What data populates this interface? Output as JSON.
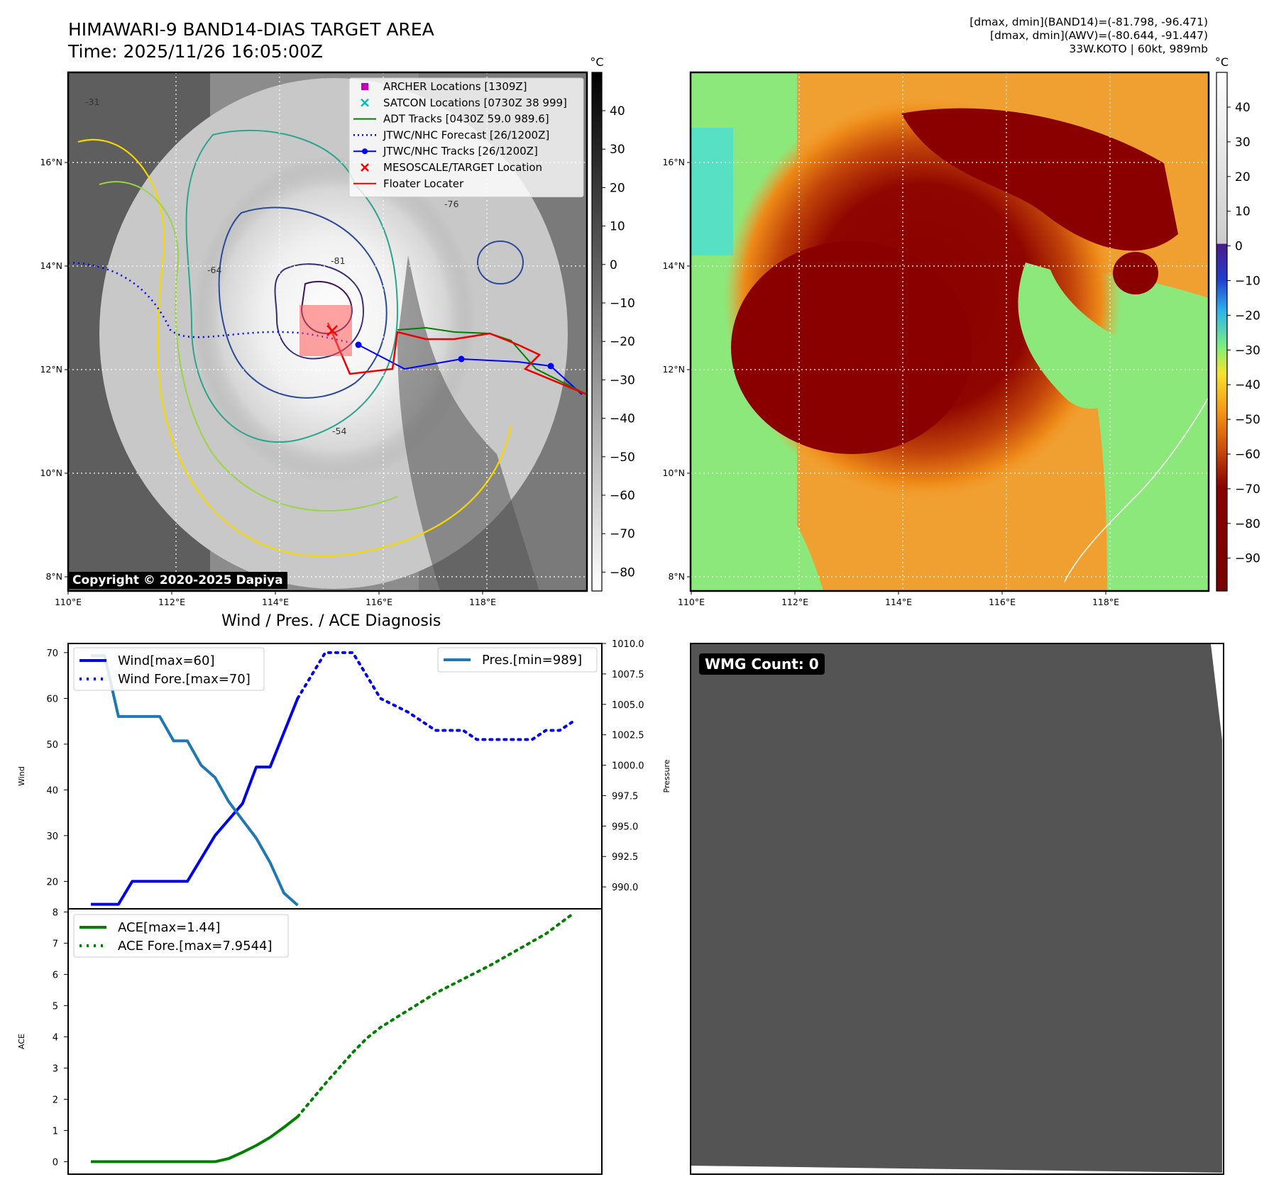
{
  "header": {
    "title_line1": "HIMAWARI-9 BAND14-DIAS TARGET AREA",
    "title_line2": "Time: 2025/11/26 16:05:00Z",
    "info_line1": "[dmax, dmin](BAND14)=(-81.798, -96.471)",
    "info_line2": "[dmax, dmin](AWV)=(-80.644, -91.447)",
    "info_line3": "33W.KOTO | 60kt, 989mb"
  },
  "copyright": "Copyright © 2020-2025 Dapiya",
  "wmg_label": "WMG Count: 0",
  "colors": {
    "wind": "#0000ee",
    "pres": "#1f77b4",
    "ace": "#008000",
    "jtwc": "#0000ff",
    "floater": "#ee0000",
    "adt": "#008000",
    "panel_gray": "#545454"
  },
  "maps": {
    "lon_ticks": [
      "110°E",
      "112°E",
      "114°E",
      "116°E",
      "118°E"
    ],
    "lat_ticks": [
      "16°N",
      "14°N",
      "12°N",
      "10°N",
      "8°N"
    ],
    "ir_colorbar": {
      "unit": "°C",
      "ticks": [
        "40",
        "30",
        "20",
        "10",
        "0",
        "−10",
        "−20",
        "−30",
        "−40",
        "−50",
        "−60",
        "−70",
        "−80"
      ]
    },
    "awv_colorbar": {
      "unit": "°C",
      "ticks": [
        "40",
        "30",
        "20",
        "10",
        "0",
        "−10",
        "−20",
        "−30",
        "−40",
        "−50",
        "−60",
        "−70",
        "−80",
        "−90"
      ]
    },
    "contour_labels": [
      "-31",
      "-54",
      "-64",
      "-76",
      "-81"
    ],
    "legend": [
      {
        "label": "ARCHER Locations [1309Z]",
        "marker": "square",
        "color": "#bf00bf"
      },
      {
        "label": "SATCON Locations [0730Z 38 999]",
        "marker": "x",
        "color": "#00bfbf"
      },
      {
        "label": "ADT Tracks [0430Z 59.0 989.6]",
        "marker": "line",
        "color": "#008000"
      },
      {
        "label": "JTWC/NHC Forecast [26/1200Z]",
        "marker": "dotted",
        "color": "#0000ff"
      },
      {
        "label": "JTWC/NHC Tracks [26/1200Z]",
        "marker": "line-dot",
        "color": "#0000ff"
      },
      {
        "label": "MESOSCALE/TARGET Location",
        "marker": "x",
        "color": "#ff0000"
      },
      {
        "label": "Floater Locater",
        "marker": "line",
        "color": "#ee0000"
      }
    ]
  },
  "diagnosis_title": "Wind / Pres. / ACE Diagnosis",
  "chart_data": [
    {
      "type": "line",
      "title": "Wind / Pres. / ACE Diagnosis",
      "ylabel": "Wind",
      "ylabel_right": "Pressure",
      "ylim": [
        14,
        72
      ],
      "ylim_right": [
        988.2,
        1010.0
      ],
      "y_ticks": [
        20,
        30,
        40,
        50,
        60,
        70
      ],
      "y_ticks_right": [
        "990.0",
        "992.5",
        "995.0",
        "997.5",
        "1000.0",
        "1002.5",
        "1005.0",
        "1007.5",
        "1010.0"
      ],
      "x": [
        0,
        1,
        2,
        3,
        4,
        5,
        6,
        7,
        8,
        9,
        10,
        11,
        12,
        13,
        14,
        15,
        16,
        17,
        18,
        19,
        20,
        21,
        22,
        23,
        24,
        25,
        26,
        27,
        28,
        29,
        30,
        31,
        32,
        33,
        34,
        35
      ],
      "series": [
        {
          "name": "Wind[max=60]",
          "style": "solid",
          "axis": "left",
          "x": [
            0,
            2,
            3,
            7,
            9,
            11,
            12,
            13,
            15
          ],
          "values": [
            15,
            15,
            20,
            20,
            30,
            37,
            45,
            45,
            60
          ]
        },
        {
          "name": "Wind Fore.[max=70]",
          "style": "dotted",
          "axis": "left",
          "x": [
            15,
            17,
            19,
            20,
            21,
            23,
            24,
            25,
            26,
            27,
            28,
            29,
            30,
            31,
            32,
            33,
            34,
            35
          ],
          "values": [
            60,
            70,
            70,
            65,
            60,
            57,
            55,
            53,
            53,
            53,
            51,
            51,
            51,
            51,
            51,
            53,
            53,
            55
          ]
        },
        {
          "name": "Pres.[min=989]",
          "style": "solid",
          "axis": "right",
          "x": [
            0,
            1,
            2,
            5,
            6,
            7,
            8,
            9,
            10,
            11,
            12,
            13,
            14,
            15
          ],
          "values": [
            1009,
            1009,
            1004,
            1004,
            1002,
            1002,
            1000,
            999,
            997,
            995.5,
            994,
            992,
            989.5,
            988.5
          ]
        }
      ],
      "legend_left": "upper-left",
      "legend_right": "upper-right"
    },
    {
      "type": "line",
      "ylabel": "ACE",
      "ylim": [
        -0.4,
        8.1
      ],
      "y_ticks": [
        0,
        1,
        2,
        3,
        4,
        5,
        6,
        7,
        8
      ],
      "series": [
        {
          "name": "ACE[max=1.44]",
          "style": "solid",
          "x": [
            0,
            9,
            10,
            11,
            12,
            13,
            14,
            15
          ],
          "values": [
            0,
            0,
            0.1,
            0.3,
            0.52,
            0.78,
            1.1,
            1.44
          ]
        },
        {
          "name": "ACE Fore.[max=7.9544]",
          "style": "dotted",
          "x": [
            15,
            17,
            19,
            20,
            21,
            23,
            25,
            27,
            29,
            31,
            33,
            35
          ],
          "values": [
            1.44,
            2.5,
            3.5,
            3.95,
            4.3,
            4.85,
            5.4,
            5.85,
            6.3,
            6.8,
            7.3,
            7.9544
          ]
        }
      ],
      "legend": "upper-left"
    }
  ]
}
